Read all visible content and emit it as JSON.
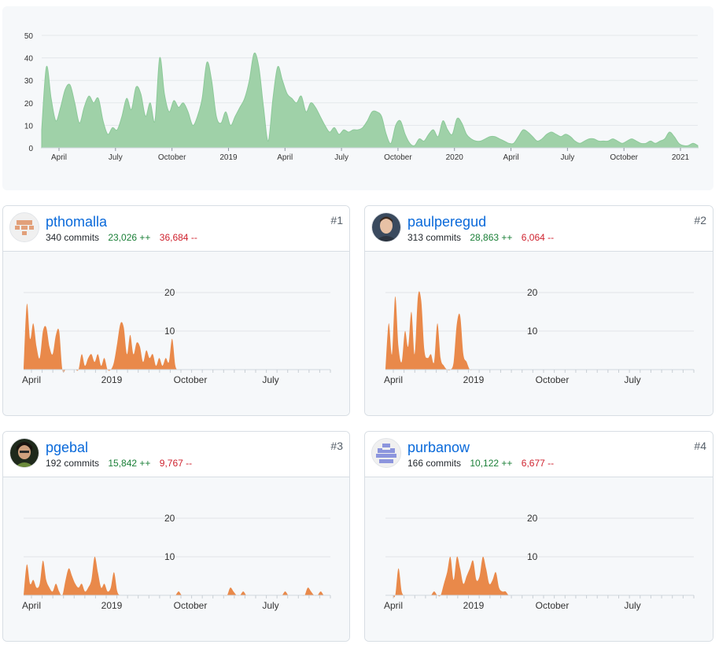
{
  "colors": {
    "overview_fill": "#9fd1a8",
    "overview_stroke": "#8cc999",
    "contrib_fill": "#e9894a",
    "adds": "#1a7f37",
    "dels": "#cf222e",
    "link": "#0969da"
  },
  "overview": {
    "y_ticks": [
      "50",
      "40",
      "30",
      "20",
      "10",
      "0"
    ],
    "x_labels": [
      "April",
      "July",
      "October",
      "2019",
      "April",
      "July",
      "October",
      "2020",
      "April",
      "July",
      "October",
      "2021"
    ],
    "chart_data": {
      "type": "area",
      "ylim": [
        0,
        50
      ],
      "values": [
        8,
        36,
        22,
        12,
        18,
        26,
        28,
        20,
        11,
        18,
        23,
        20,
        22,
        12,
        6,
        9,
        8,
        14,
        22,
        17,
        27,
        24,
        14,
        20,
        12,
        40,
        24,
        16,
        21,
        18,
        20,
        16,
        10,
        14,
        22,
        38,
        30,
        14,
        11,
        16,
        10,
        14,
        18,
        22,
        30,
        42,
        36,
        18,
        3,
        22,
        36,
        30,
        24,
        22,
        20,
        23,
        16,
        20,
        18,
        14,
        10,
        7,
        9,
        6,
        8,
        7,
        8,
        8,
        9,
        12,
        16,
        16,
        14,
        6,
        2,
        10,
        12,
        6,
        2,
        1,
        4,
        3,
        6,
        8,
        5,
        12,
        8,
        6,
        13,
        11,
        6,
        4,
        3,
        3,
        4,
        5,
        5,
        4,
        3,
        2,
        2,
        5,
        8,
        7,
        5,
        3,
        4,
        6,
        7,
        6,
        5,
        6,
        5,
        3,
        2,
        3,
        4,
        4,
        3,
        3,
        3,
        4,
        3,
        2,
        3,
        4,
        3,
        2,
        2,
        3,
        2,
        3,
        4,
        7,
        5,
        2,
        1,
        1,
        2,
        1
      ]
    }
  },
  "contributors": [
    {
      "username": "pthomalla",
      "commits": "340 commits",
      "additions": "23,026 ++",
      "deletions": "36,684 --",
      "rank": "#1",
      "avatar": "identicon-orange",
      "y_ticks": [
        "20",
        "10"
      ],
      "x_labels": [
        "April",
        "2019",
        "October",
        "July"
      ],
      "chart_data": {
        "type": "area",
        "ylim": [
          0,
          25
        ],
        "values": [
          0,
          17,
          8,
          12,
          6,
          3,
          10,
          11,
          6,
          4,
          9,
          10,
          0,
          0,
          0,
          0,
          0,
          0,
          4,
          1,
          3,
          4,
          2,
          4,
          1,
          3,
          0,
          0,
          2,
          7,
          12,
          11,
          4,
          9,
          4,
          7,
          6,
          2,
          5,
          3,
          4,
          1,
          3,
          1,
          3,
          2,
          8,
          1,
          0,
          0,
          0,
          0,
          0,
          0,
          0,
          0,
          0,
          0,
          0,
          0,
          0,
          0,
          0,
          0,
          0,
          0,
          0,
          0,
          0,
          0,
          0,
          0,
          0,
          0,
          0,
          0,
          0,
          0,
          0,
          0,
          0,
          0,
          0,
          0,
          0,
          0,
          0,
          0,
          0,
          0,
          0,
          0,
          0,
          0,
          0,
          0
        ]
      }
    },
    {
      "username": "paulperegud",
      "commits": "313 commits",
      "additions": "28,863 ++",
      "deletions": "6,064 --",
      "rank": "#2",
      "avatar": "photo-man",
      "y_ticks": [
        "20",
        "10"
      ],
      "x_labels": [
        "April",
        "2019",
        "October",
        "July"
      ],
      "chart_data": {
        "type": "area",
        "ylim": [
          0,
          25
        ],
        "values": [
          0,
          12,
          4,
          19,
          6,
          2,
          10,
          6,
          15,
          4,
          19,
          18,
          5,
          3,
          4,
          2,
          12,
          3,
          1,
          0,
          0,
          2,
          12,
          14,
          4,
          2,
          0,
          0,
          0,
          0,
          0,
          0,
          0,
          0,
          0,
          0,
          0,
          0,
          0,
          0,
          0,
          0,
          0,
          0,
          0,
          0,
          0,
          0,
          0,
          0,
          0,
          0,
          0,
          0,
          0,
          0,
          0,
          0,
          0,
          0,
          0,
          0,
          0,
          0,
          0,
          0,
          0,
          0,
          0,
          0,
          0,
          0,
          0,
          0,
          0,
          0,
          0,
          0,
          0,
          0,
          0,
          0,
          0,
          0,
          0,
          0,
          0,
          0,
          0,
          0,
          0,
          0,
          0,
          0,
          0,
          0
        ]
      }
    },
    {
      "username": "pgebal",
      "commits": "192 commits",
      "additions": "15,842 ++",
      "deletions": "9,767 --",
      "rank": "#3",
      "avatar": "photo-person",
      "y_ticks": [
        "20",
        "10"
      ],
      "x_labels": [
        "April",
        "2019",
        "October",
        "July"
      ],
      "chart_data": {
        "type": "area",
        "ylim": [
          0,
          25
        ],
        "values": [
          0,
          8,
          3,
          4,
          2,
          3,
          9,
          4,
          2,
          1,
          3,
          1,
          0,
          4,
          7,
          5,
          3,
          2,
          3,
          1,
          2,
          4,
          10,
          6,
          2,
          3,
          1,
          2,
          6,
          1,
          0,
          0,
          0,
          0,
          0,
          0,
          0,
          0,
          0,
          0,
          0,
          0,
          0,
          0,
          0,
          0,
          0,
          0,
          1,
          0,
          0,
          0,
          0,
          0,
          0,
          0,
          0,
          0,
          0,
          0,
          0,
          0,
          0,
          0,
          2,
          1,
          0,
          0,
          1,
          0,
          0,
          0,
          0,
          0,
          0,
          0,
          0,
          0,
          0,
          0,
          0,
          1,
          0,
          0,
          0,
          0,
          0,
          0,
          2,
          1,
          0,
          0,
          1,
          0,
          0,
          0
        ]
      }
    },
    {
      "username": "purbanow",
      "commits": "166 commits",
      "additions": "10,122 ++",
      "deletions": "6,677 --",
      "rank": "#4",
      "avatar": "identicon-blue",
      "y_ticks": [
        "20",
        "10"
      ],
      "x_labels": [
        "April",
        "2019",
        "October",
        "July"
      ],
      "chart_data": {
        "type": "area",
        "ylim": [
          0,
          25
        ],
        "values": [
          0,
          0,
          0,
          0,
          7,
          1,
          0,
          0,
          0,
          0,
          0,
          0,
          0,
          0,
          0,
          1,
          0,
          0,
          3,
          6,
          10,
          4,
          10,
          7,
          3,
          5,
          7,
          9,
          4,
          5,
          10,
          7,
          3,
          4,
          6,
          2,
          1,
          1,
          0,
          0,
          0,
          0,
          0,
          0,
          0,
          0,
          0,
          0,
          0,
          0,
          0,
          0,
          0,
          0,
          0,
          0,
          0,
          0,
          0,
          0,
          0,
          0,
          0,
          0,
          0,
          0,
          0,
          0,
          0,
          0,
          0,
          0,
          0,
          0,
          0,
          0,
          0,
          0,
          0,
          0,
          0,
          0,
          0,
          0,
          0,
          0,
          0,
          0,
          0,
          0,
          0,
          0,
          0,
          0,
          0,
          0
        ]
      }
    }
  ]
}
